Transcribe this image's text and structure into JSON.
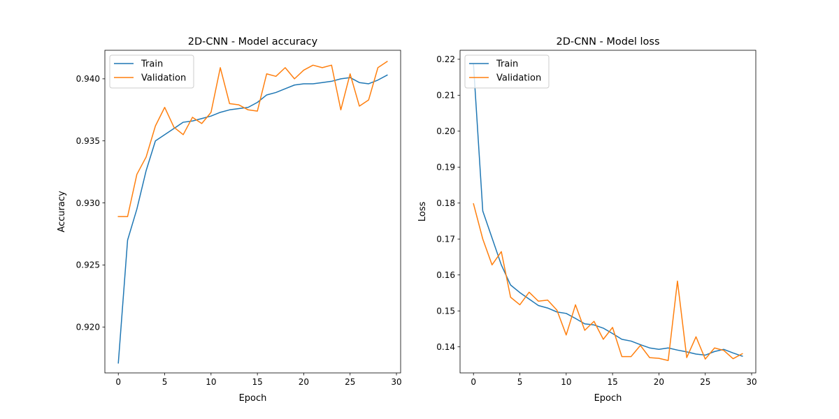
{
  "chart_data": [
    {
      "type": "line",
      "title": "2D-CNN - Model accuracy",
      "xlabel": "Epoch",
      "ylabel": "Accuracy",
      "xlim": [
        -1.45,
        30.45
      ],
      "ylim": [
        0.9163,
        0.9423
      ],
      "xticks": [
        0,
        5,
        10,
        15,
        20,
        25,
        30
      ],
      "yticks": [
        0.92,
        0.925,
        0.93,
        0.935,
        0.94
      ],
      "ytick_labels": [
        "0.920",
        "0.925",
        "0.930",
        "0.935",
        "0.940"
      ],
      "legend_position": "upper left",
      "x": [
        0,
        1,
        2,
        3,
        4,
        5,
        6,
        7,
        8,
        9,
        10,
        11,
        12,
        13,
        14,
        15,
        16,
        17,
        18,
        19,
        20,
        21,
        22,
        23,
        24,
        25,
        26,
        27,
        28,
        29
      ],
      "series": [
        {
          "name": "Train",
          "color": "#1f77b4",
          "values": [
            0.9171,
            0.927,
            0.9295,
            0.9326,
            0.935,
            0.9355,
            0.936,
            0.9365,
            0.9366,
            0.9368,
            0.937,
            0.9373,
            0.9375,
            0.9376,
            0.9377,
            0.9381,
            0.9387,
            0.9389,
            0.9392,
            0.9395,
            0.9396,
            0.9396,
            0.9397,
            0.9398,
            0.94,
            0.9401,
            0.9397,
            0.9396,
            0.9399,
            0.9403
          ]
        },
        {
          "name": "Validation",
          "color": "#ff7f0e",
          "values": [
            0.9289,
            0.9289,
            0.9323,
            0.9337,
            0.9362,
            0.9377,
            0.9361,
            0.9355,
            0.9369,
            0.9364,
            0.9373,
            0.9409,
            0.938,
            0.9379,
            0.9375,
            0.9374,
            0.9404,
            0.9402,
            0.9409,
            0.94,
            0.9407,
            0.9411,
            0.9409,
            0.9411,
            0.9375,
            0.9404,
            0.9378,
            0.9383,
            0.9409,
            0.9414
          ]
        }
      ]
    },
    {
      "type": "line",
      "title": "2D-CNN - Model loss",
      "xlabel": "Epoch",
      "ylabel": "Loss",
      "xlim": [
        -1.45,
        30.45
      ],
      "ylim": [
        0.13275,
        0.2225
      ],
      "xticks": [
        0,
        5,
        10,
        15,
        20,
        25,
        30
      ],
      "yticks": [
        0.14,
        0.15,
        0.16,
        0.17,
        0.18,
        0.19,
        0.2,
        0.21,
        0.22
      ],
      "ytick_labels": [
        "0.14",
        "0.15",
        "0.16",
        "0.17",
        "0.18",
        "0.19",
        "0.20",
        "0.21",
        "0.22"
      ],
      "legend_position": "upper left",
      "x": [
        0,
        1,
        2,
        3,
        4,
        5,
        6,
        7,
        8,
        9,
        10,
        11,
        12,
        13,
        14,
        15,
        16,
        17,
        18,
        19,
        20,
        21,
        22,
        23,
        24,
        25,
        26,
        27,
        28,
        29
      ],
      "series": [
        {
          "name": "Train",
          "color": "#1f77b4",
          "values": [
            0.2185,
            0.1778,
            0.1703,
            0.1628,
            0.1572,
            0.1551,
            0.1533,
            0.1515,
            0.1508,
            0.1497,
            0.1493,
            0.1479,
            0.1464,
            0.1461,
            0.1452,
            0.1437,
            0.1421,
            0.1416,
            0.1406,
            0.1397,
            0.1393,
            0.1397,
            0.1391,
            0.1386,
            0.138,
            0.1377,
            0.1387,
            0.1393,
            0.1383,
            0.1374
          ]
        },
        {
          "name": "Validation",
          "color": "#ff7f0e",
          "values": [
            0.1798,
            0.17,
            0.1628,
            0.1665,
            0.1538,
            0.1517,
            0.1552,
            0.1527,
            0.153,
            0.1502,
            0.1433,
            0.1517,
            0.1446,
            0.1471,
            0.1421,
            0.1454,
            0.1373,
            0.1373,
            0.1404,
            0.137,
            0.1368,
            0.1362,
            0.1583,
            0.137,
            0.1428,
            0.1366,
            0.1397,
            0.139,
            0.1367,
            0.1381
          ]
        }
      ]
    }
  ]
}
